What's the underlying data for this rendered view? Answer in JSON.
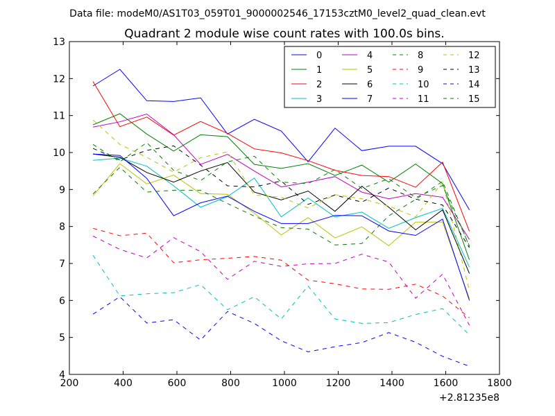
{
  "header": {
    "data_file": "Data file: modeM0/AS1T03_059T01_9000002546_17153cztM0_level2_quad_clean.evt"
  },
  "chart_data": {
    "type": "line",
    "title": "Quadrant 2 module wise count rates with 100.0s bins.",
    "xlabel": "",
    "ylabel": "",
    "x_offset_label": "+2.81235e8",
    "xlim": [
      200,
      1800
    ],
    "ylim": [
      4,
      13
    ],
    "x_ticks": [
      200,
      400,
      600,
      800,
      1000,
      1200,
      1400,
      1600,
      1800
    ],
    "y_ticks": [
      4,
      5,
      6,
      7,
      8,
      9,
      10,
      11,
      12,
      13
    ],
    "grid": false,
    "legend_position": "top-right",
    "x": [
      288,
      388,
      488,
      588,
      688,
      788,
      888,
      988,
      1088,
      1188,
      1288,
      1388,
      1488,
      1588,
      1688
    ],
    "series": [
      {
        "name": "0",
        "color": "#0000ff",
        "dash": "solid",
        "values": [
          11.8,
          12.25,
          11.4,
          11.38,
          11.48,
          10.5,
          10.9,
          10.58,
          9.75,
          10.66,
          10.05,
          10.17,
          10.17,
          9.7,
          8.45
        ]
      },
      {
        "name": "1",
        "color": "#008000",
        "dash": "solid",
        "values": [
          10.75,
          11.05,
          10.5,
          10.04,
          10.48,
          10.43,
          9.68,
          9.57,
          9.7,
          9.38,
          9.66,
          9.2,
          9.69,
          9.16,
          7.1
        ]
      },
      {
        "name": "2",
        "color": "#ff0000",
        "dash": "solid",
        "values": [
          11.92,
          10.7,
          10.96,
          10.47,
          10.84,
          10.52,
          10.1,
          9.99,
          9.78,
          9.52,
          9.38,
          9.35,
          9.06,
          9.74,
          7.87
        ]
      },
      {
        "name": "3",
        "color": "#00bfbf",
        "dash": "solid",
        "values": [
          9.79,
          9.85,
          9.63,
          9.1,
          8.52,
          8.81,
          9.31,
          8.26,
          8.77,
          8.26,
          8.39,
          7.95,
          8.24,
          8.49,
          6.9
        ]
      },
      {
        "name": "4",
        "color": "#bf00bf",
        "dash": "solid",
        "values": [
          10.69,
          10.83,
          11.04,
          10.48,
          9.68,
          9.95,
          9.5,
          9.07,
          9.2,
          9.35,
          8.93,
          8.75,
          8.89,
          8.79,
          7.65
        ]
      },
      {
        "name": "5",
        "color": "#bfbf00",
        "dash": "solid",
        "values": [
          8.83,
          9.7,
          9.15,
          9.39,
          8.89,
          8.87,
          8.36,
          7.77,
          8.24,
          7.69,
          7.99,
          7.48,
          8.12,
          8.12,
          6.05
        ]
      },
      {
        "name": "6",
        "color": "#000000",
        "dash": "solid",
        "values": [
          9.96,
          9.87,
          9.46,
          9.2,
          9.5,
          9.73,
          8.93,
          8.72,
          8.96,
          8.41,
          9.09,
          8.52,
          7.91,
          8.45,
          6.73
        ]
      },
      {
        "name": "7",
        "color": "#0000ff",
        "dash": "solid",
        "values": [
          9.96,
          9.92,
          9.3,
          8.29,
          8.64,
          8.82,
          8.41,
          8.08,
          8.08,
          8.3,
          8.29,
          7.88,
          7.76,
          8.2,
          6.0
        ]
      },
      {
        "name": "8",
        "color": "#008000",
        "dash": "dashed",
        "values": [
          8.88,
          9.6,
          8.93,
          8.98,
          8.98,
          8.62,
          8.28,
          7.97,
          7.93,
          7.5,
          7.54,
          8.29,
          8.73,
          9.22,
          7.46
        ]
      },
      {
        "name": "9",
        "color": "#ff0000",
        "dash": "dashed",
        "values": [
          7.95,
          7.75,
          7.82,
          7.02,
          7.1,
          7.14,
          7.19,
          7.09,
          6.55,
          6.45,
          6.31,
          6.3,
          6.44,
          6.12,
          5.53
        ]
      },
      {
        "name": "10",
        "color": "#00bfbf",
        "dash": "dashed",
        "values": [
          7.22,
          6.12,
          6.18,
          6.21,
          6.43,
          5.75,
          6.1,
          5.5,
          6.39,
          5.5,
          5.38,
          5.4,
          5.62,
          5.78,
          5.07
        ]
      },
      {
        "name": "11",
        "color": "#bf00bf",
        "dash": "dashed",
        "values": [
          7.74,
          7.38,
          7.15,
          7.7,
          7.32,
          6.57,
          7.06,
          6.92,
          6.99,
          7.0,
          7.25,
          7.04,
          6.06,
          6.71,
          5.33
        ]
      },
      {
        "name": "12",
        "color": "#bfbf00",
        "dash": "dashed",
        "values": [
          10.88,
          10.22,
          9.87,
          9.47,
          9.86,
          10.02,
          8.85,
          8.79,
          8.5,
          8.86,
          8.75,
          8.55,
          8.26,
          9.2,
          6.27
        ]
      },
      {
        "name": "13",
        "color": "#000000",
        "dash": "dashed",
        "values": [
          10.11,
          9.8,
          10.06,
          10.18,
          9.66,
          9.1,
          9.07,
          9.23,
          8.6,
          8.85,
          8.66,
          9.04,
          8.74,
          8.58,
          7.43
        ]
      },
      {
        "name": "14",
        "color": "#0000ff",
        "dash": "dashed",
        "values": [
          5.63,
          6.1,
          5.39,
          5.48,
          4.93,
          5.7,
          5.38,
          4.91,
          4.61,
          4.75,
          4.86,
          5.13,
          4.87,
          4.49,
          4.22
        ]
      },
      {
        "name": "15",
        "color": "#008000",
        "dash": "dashed",
        "values": [
          10.22,
          9.75,
          10.27,
          9.52,
          9.24,
          9.75,
          9.9,
          9.2,
          9.16,
          9.54,
          9.03,
          9.29,
          8.78,
          9.11,
          7.48
        ]
      }
    ]
  }
}
